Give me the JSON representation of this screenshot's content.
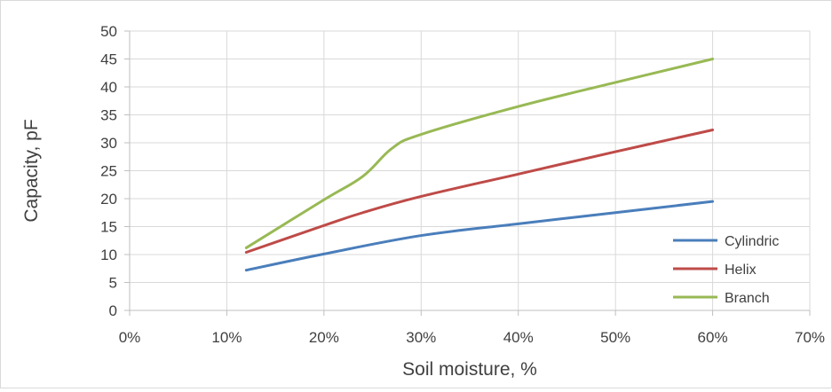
{
  "chart_data": {
    "type": "line",
    "title": "",
    "xlabel": "Soil moisture, %",
    "ylabel": "Capacity, pF",
    "xlim": [
      0,
      70
    ],
    "ylim": [
      0,
      50
    ],
    "x_ticks": [
      "0%",
      "10%",
      "20%",
      "30%",
      "40%",
      "50%",
      "60%",
      "70%"
    ],
    "y_ticks": [
      "0",
      "5",
      "10",
      "15",
      "20",
      "25",
      "30",
      "35",
      "40",
      "45",
      "50"
    ],
    "grid": true,
    "legend_position": "bottom-right",
    "series": [
      {
        "name": "Cylindric",
        "color": "#4a7ebb",
        "x": [
          12,
          20,
          30,
          40,
          50,
          60
        ],
        "y": [
          7.2,
          10.1,
          13.4,
          15.5,
          17.5,
          19.5
        ]
      },
      {
        "name": "Helix",
        "color": "#be4b48",
        "x": [
          12,
          20,
          24,
          30,
          40,
          50,
          60
        ],
        "y": [
          10.4,
          15.2,
          17.5,
          20.4,
          24.4,
          28.4,
          32.3
        ]
      },
      {
        "name": "Branch",
        "color": "#98b954",
        "x": [
          12,
          20,
          24,
          27,
          30,
          40,
          50,
          60
        ],
        "y": [
          11.2,
          19.8,
          24,
          29,
          31.5,
          36.5,
          40.8,
          45
        ]
      }
    ]
  }
}
